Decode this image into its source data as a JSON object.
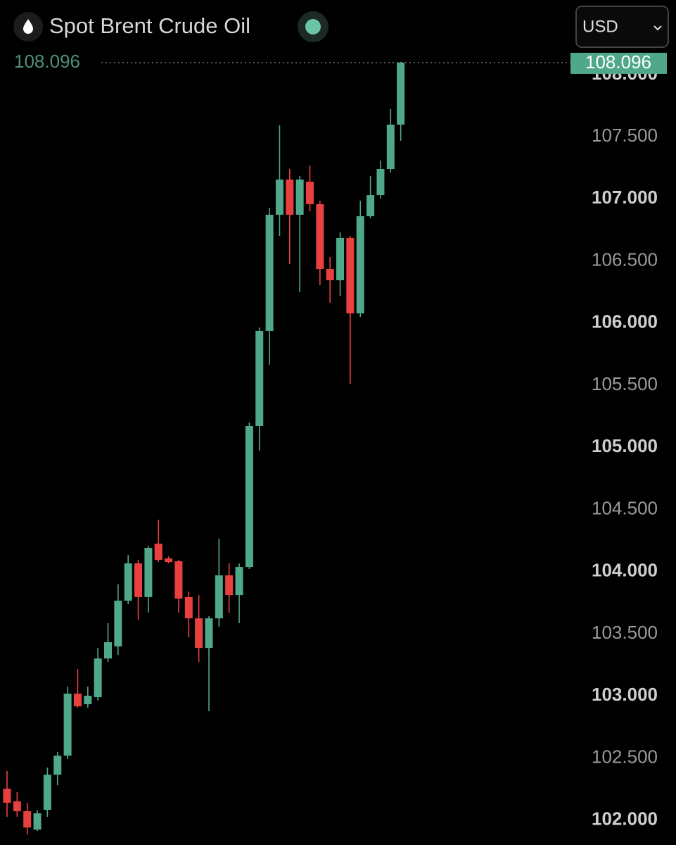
{
  "chart_data": {
    "type": "candlestick",
    "title": "Spot Brent Crude Oil",
    "currency": "USD",
    "last_price": 108.096,
    "last_price_label": "108.096",
    "up_color": "#4fa889",
    "down_color": "#e8403f",
    "ylim": [
      101.8,
      108.6
    ],
    "yticks": [
      {
        "value": 102,
        "label": "102.000"
      },
      {
        "value": 102.5,
        "label": "102.500"
      },
      {
        "value": 103,
        "label": "103.000"
      },
      {
        "value": 103.5,
        "label": "103.500"
      },
      {
        "value": 104,
        "label": "104.000"
      },
      {
        "value": 104.5,
        "label": "104.500"
      },
      {
        "value": 105,
        "label": "105.000"
      },
      {
        "value": 105.5,
        "label": "105.500"
      },
      {
        "value": 106,
        "label": "106.000"
      },
      {
        "value": 106.5,
        "label": "106.500"
      },
      {
        "value": 107,
        "label": "107.000"
      },
      {
        "value": 107.5,
        "label": "107.500"
      },
      {
        "value": 108,
        "label": "108.000"
      }
    ],
    "open": [
      102.253,
      102.151,
      102.072,
      101.924,
      102.083,
      102.366,
      102.519,
      103.018,
      102.933,
      102.99,
      103.301,
      103.398,
      103.766,
      104.066,
      103.795,
      104.225,
      104.106,
      104.083,
      103.795,
      103.624,
      103.386,
      103.624,
      103.97,
      103.811,
      104.038,
      105.172,
      105.937,
      106.872,
      107.155,
      106.872,
      107.138,
      106.957,
      106.435,
      106.345,
      106.685,
      106.078,
      106.86,
      107.03,
      107.24,
      107.597
    ],
    "high": [
      102.395,
      102.225,
      102.14,
      102.083,
      102.423,
      102.548,
      103.075,
      103.216,
      103.075,
      103.386,
      103.585,
      103.897,
      104.134,
      104.095,
      104.208,
      104.418,
      104.123,
      104.095,
      103.84,
      103.811,
      103.641,
      104.265,
      104.066,
      104.066,
      105.2,
      105.965,
      106.928,
      107.591,
      107.24,
      107.183,
      107.268,
      106.985,
      106.532,
      106.73,
      106.702,
      106.985,
      107.183,
      107.308,
      107.722,
      108.101
    ],
    "low": [
      102.027,
      102.027,
      101.885,
      101.913,
      102.027,
      102.281,
      102.491,
      102.905,
      102.905,
      102.962,
      103.273,
      103.33,
      103.738,
      103.613,
      103.67,
      104.078,
      104.066,
      103.67,
      103.471,
      103.273,
      102.876,
      103.556,
      103.67,
      103.585,
      104.021,
      104.973,
      105.665,
      106.702,
      106.475,
      106.248,
      106.9,
      106.305,
      106.163,
      106.22,
      105.511,
      106.05,
      106.843,
      107.002,
      107.212,
      107.467
    ],
    "close": [
      102.14,
      102.072,
      101.941,
      102.055,
      102.366,
      102.519,
      103.018,
      102.916,
      103.001,
      103.301,
      103.432,
      103.766,
      104.066,
      103.795,
      104.191,
      104.095,
      104.078,
      103.783,
      103.624,
      103.386,
      103.624,
      103.97,
      103.811,
      104.038,
      105.172,
      105.937,
      106.872,
      107.155,
      106.872,
      107.155,
      106.957,
      106.435,
      106.345,
      106.685,
      106.078,
      106.86,
      107.03,
      107.24,
      107.597,
      108.096
    ]
  }
}
